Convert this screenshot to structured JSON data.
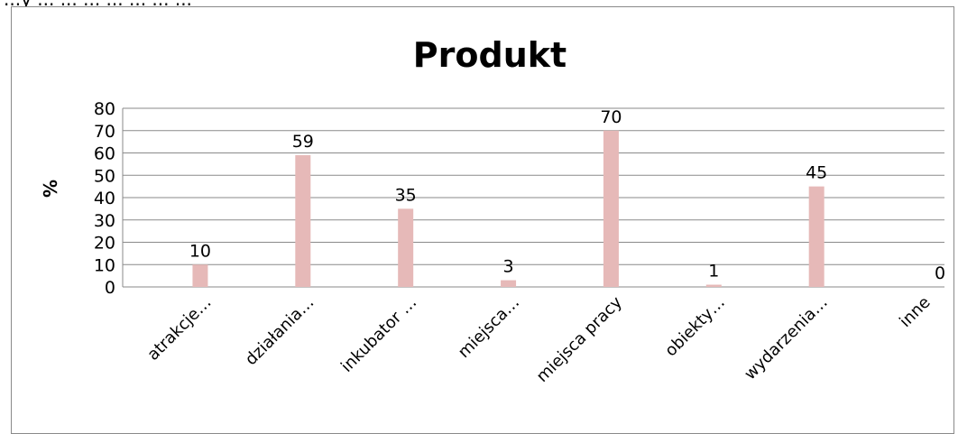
{
  "page": {
    "top_text": "...y ... ... ... ... ... ... ..."
  },
  "chart_data": {
    "type": "bar",
    "title": "Produkt",
    "xlabel": "",
    "ylabel": "%",
    "ylim": [
      0,
      80
    ],
    "yticks": [
      0,
      10,
      20,
      30,
      40,
      50,
      60,
      70,
      80
    ],
    "grid": true,
    "legend": "none",
    "bar_color": "#e6b9b8",
    "categories": [
      "atrakcje…",
      "działania…",
      "inkubator …",
      "miejsca…",
      "miejsca pracy",
      "obiekty…",
      "wydarzenia…",
      "inne"
    ],
    "values": [
      10,
      59,
      35,
      3,
      70,
      1,
      45,
      0
    ],
    "data_labels": [
      "10",
      "59",
      "35",
      "3",
      "70",
      "1",
      "45",
      "0"
    ]
  }
}
